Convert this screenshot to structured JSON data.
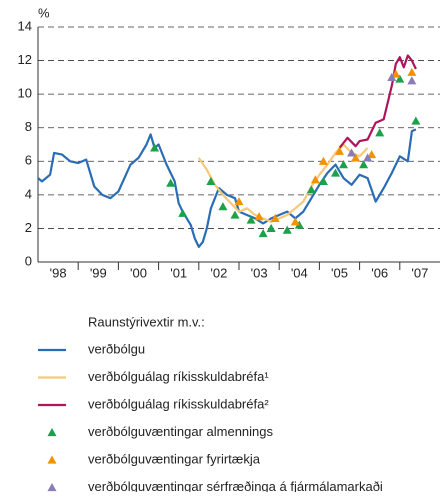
{
  "chart_data": {
    "type": "line",
    "y_unit": "%",
    "xlim": [
      1998,
      2008
    ],
    "ylim": [
      0,
      14
    ],
    "xticks": [
      {
        "value": 1998.5,
        "label": "'98"
      },
      {
        "value": 1999.5,
        "label": "'99"
      },
      {
        "value": 2000.5,
        "label": "'00"
      },
      {
        "value": 2001.5,
        "label": "'01"
      },
      {
        "value": 2002.5,
        "label": "'02"
      },
      {
        "value": 2003.5,
        "label": "'03"
      },
      {
        "value": 2004.5,
        "label": "'04"
      },
      {
        "value": 2005.5,
        "label": "'05"
      },
      {
        "value": 2006.5,
        "label": "'06"
      },
      {
        "value": 2007.5,
        "label": "'07"
      }
    ],
    "yticks": [
      0,
      2,
      4,
      6,
      8,
      10,
      12,
      14
    ],
    "grid": true,
    "legend_title": "Raunstýrivextir m.v.:",
    "series": [
      {
        "name": "verðbólgu",
        "type": "line",
        "color": "#2a6db5",
        "x": [
          1998.0,
          1998.1,
          1998.2,
          1998.3,
          1998.4,
          1998.6,
          1998.8,
          1999.0,
          1999.2,
          1999.4,
          1999.6,
          1999.8,
          2000.0,
          2000.3,
          2000.5,
          2000.7,
          2000.8,
          2000.9,
          2001.0,
          2001.2,
          2001.4,
          2001.5,
          2001.6,
          2001.8,
          2001.9,
          2002.0,
          2002.1,
          2002.2,
          2002.3,
          2002.5,
          2002.7,
          2002.9,
          2003.0,
          2003.2,
          2003.4,
          2003.6,
          2003.8,
          2004.0,
          2004.2,
          2004.4,
          2004.6,
          2004.8,
          2005.0,
          2005.2,
          2005.4,
          2005.6,
          2005.8,
          2006.0,
          2006.2,
          2006.4,
          2006.6,
          2006.8,
          2007.0,
          2007.2,
          2007.3,
          2007.4
        ],
        "values": [
          5.0,
          4.8,
          5.0,
          5.2,
          6.5,
          6.4,
          6.0,
          5.9,
          6.1,
          4.5,
          4.0,
          3.8,
          4.2,
          5.8,
          6.2,
          7.0,
          7.6,
          6.8,
          7.0,
          5.8,
          4.8,
          3.5,
          3.0,
          2.2,
          1.4,
          0.9,
          1.2,
          2.0,
          3.2,
          4.4,
          4.0,
          3.8,
          3.0,
          2.8,
          2.6,
          2.3,
          2.6,
          2.8,
          3.0,
          2.6,
          3.0,
          3.8,
          4.6,
          5.3,
          5.8,
          5.0,
          4.6,
          5.2,
          5.0,
          3.6,
          4.4,
          5.3,
          6.3,
          6.0,
          7.8,
          7.9
        ]
      },
      {
        "name": "verðbólguálag ríkisskuldabréfa¹",
        "type": "line",
        "color": "#f5c97a",
        "x": [
          2002.0,
          2002.2,
          2002.4,
          2002.6,
          2002.8,
          2003.0,
          2003.2,
          2003.4,
          2003.6,
          2003.8,
          2004.0,
          2004.2,
          2004.4,
          2004.6,
          2004.8,
          2005.0,
          2005.2,
          2005.4,
          2005.6,
          2005.8,
          2006.0,
          2006.2
        ],
        "values": [
          6.2,
          5.5,
          4.6,
          4.0,
          3.5,
          3.0,
          3.2,
          2.8,
          2.6,
          2.4,
          2.6,
          2.8,
          3.2,
          3.6,
          4.5,
          5.2,
          5.8,
          6.5,
          7.0,
          6.5,
          6.3,
          6.8
        ]
      },
      {
        "name": "verðbólguálag ríkisskuldabréfa²",
        "type": "line",
        "color": "#b0145a",
        "x": [
          2005.5,
          2005.7,
          2005.9,
          2006.0,
          2006.2,
          2006.4,
          2006.6,
          2006.8,
          2006.9,
          2007.0,
          2007.1,
          2007.2,
          2007.3,
          2007.4
        ],
        "values": [
          6.8,
          7.4,
          6.9,
          7.2,
          7.3,
          8.3,
          8.5,
          10.5,
          11.8,
          12.2,
          11.6,
          12.3,
          12.0,
          11.5
        ]
      },
      {
        "name": "verðbólguvæntingar almennings",
        "type": "scatter",
        "color": "#1aa14a",
        "x": [
          2000.9,
          2001.3,
          2001.6,
          2002.3,
          2002.6,
          2002.9,
          2003.3,
          2003.6,
          2003.8,
          2004.2,
          2004.5,
          2004.8,
          2005.1,
          2005.4,
          2005.6,
          2006.1,
          2006.5,
          2007.0,
          2007.4
        ],
        "values": [
          6.8,
          4.7,
          2.9,
          4.8,
          3.3,
          2.8,
          2.5,
          1.7,
          2.0,
          1.9,
          2.2,
          4.3,
          4.8,
          5.3,
          5.8,
          5.8,
          7.7,
          10.9,
          8.4
        ]
      },
      {
        "name": "verðbólguvæntingar fyrirtækja",
        "type": "scatter",
        "color": "#f39200",
        "x": [
          2003.0,
          2003.5,
          2003.9,
          2004.4,
          2004.9,
          2005.1,
          2005.5,
          2005.9,
          2006.3,
          2006.9,
          2007.3
        ],
        "values": [
          3.6,
          2.7,
          2.6,
          2.4,
          4.9,
          6.0,
          6.6,
          6.2,
          6.4,
          11.2,
          11.3
        ]
      },
      {
        "name": "verðbólguvæntingar sérfræðinga á fjármálamarkaði",
        "type": "scatter",
        "color": "#8b7bb8",
        "x": [
          2005.8,
          2006.2,
          2006.8,
          2007.3
        ],
        "values": [
          6.5,
          6.2,
          11.0,
          10.8
        ]
      }
    ]
  }
}
